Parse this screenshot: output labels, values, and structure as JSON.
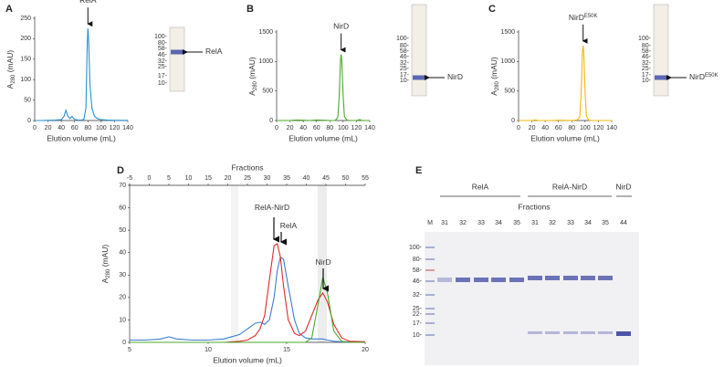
{
  "chart_data": [
    {
      "type": "line",
      "panel": "A",
      "xlabel": "Elution volume (mL)",
      "ylabel": {
        "main": "A",
        "sub": "280",
        "rest": " (mAU)"
      },
      "xlim": [
        0,
        140
      ],
      "xticks": [
        0,
        20,
        40,
        60,
        80,
        100,
        120,
        140
      ],
      "ylim": [
        0,
        250
      ],
      "yticks": [
        0,
        50,
        100,
        150,
        200,
        250
      ],
      "annotation": {
        "main": "RelA"
      },
      "inset_markers": [
        "100-",
        "80-",
        "58-",
        "46-",
        "32-",
        "25-",
        "17-",
        "10-"
      ],
      "inset_label": {
        "main": "RelA"
      },
      "x": [
        0,
        10,
        20,
        30,
        40,
        44,
        47,
        50,
        53,
        56,
        59,
        62,
        66,
        70,
        74,
        77,
        79,
        80,
        81,
        83,
        86,
        90,
        95,
        100,
        110,
        120,
        130,
        140
      ],
      "series": [
        {
          "color": "#2a8fd6",
          "values": [
            0,
            0,
            0.5,
            1,
            2,
            10,
            25,
            10,
            5,
            10,
            4,
            2,
            1,
            1,
            3,
            30,
            190,
            225,
            200,
            90,
            30,
            10,
            4,
            2,
            1,
            0.5,
            0.5,
            0.5
          ]
        }
      ]
    },
    {
      "type": "line",
      "panel": "B",
      "xlabel": "Elution volume (mL)",
      "ylabel": {
        "main": "A",
        "sub": "280",
        "rest": " (mAU)"
      },
      "xlim": [
        0,
        140
      ],
      "xticks": [
        0,
        20,
        40,
        60,
        80,
        100,
        120,
        140
      ],
      "ylim": [
        0,
        1500
      ],
      "yticks": [
        0,
        500,
        1000,
        1500
      ],
      "annotation": {
        "main": "NirD"
      },
      "inset_markers": [
        "100-",
        "80-",
        "58-",
        "46-",
        "32-",
        "25-",
        "17-",
        "10-"
      ],
      "inset_label": {
        "main": "NirD"
      },
      "x": [
        0,
        20,
        30,
        50,
        60,
        80,
        88,
        92,
        94,
        96,
        97,
        98,
        100,
        102,
        106,
        110,
        120,
        125,
        128,
        140
      ],
      "series": [
        {
          "color": "#4aa92a",
          "values": [
            0,
            0,
            10,
            0,
            10,
            0,
            2,
            50,
            400,
            1000,
            1120,
            1000,
            400,
            60,
            5,
            0,
            0,
            15,
            0,
            0
          ]
        }
      ]
    },
    {
      "type": "line",
      "panel": "C",
      "xlabel": "Elution volume (mL)",
      "ylabel": {
        "main": "A",
        "sub": "280",
        "rest": " (mAU)"
      },
      "xlim": [
        0,
        140
      ],
      "xticks": [
        0,
        20,
        40,
        60,
        80,
        100,
        120,
        140
      ],
      "ylim": [
        0,
        1500
      ],
      "yticks": [
        0,
        500,
        1000,
        1500
      ],
      "annotation": {
        "main": "NirD",
        "sup": "E50K"
      },
      "inset_markers": [
        "100-",
        "80-",
        "58-",
        "46-",
        "32-",
        "25-",
        "17-",
        "10-"
      ],
      "inset_label": {
        "main": "NirD",
        "sup": "E50K"
      },
      "x": [
        0,
        20,
        25,
        30,
        50,
        60,
        80,
        88,
        92,
        94,
        96,
        97,
        98,
        100,
        102,
        106,
        110,
        120,
        140
      ],
      "series": [
        {
          "color": "#f2b807",
          "values": [
            0,
            0,
            10,
            0,
            0,
            5,
            0,
            10,
            60,
            450,
            1150,
            1270,
            1150,
            450,
            70,
            5,
            0,
            0,
            0
          ]
        }
      ]
    },
    {
      "type": "line",
      "panel": "D",
      "xlabel": "Elution volume (mL)",
      "x2label": "Fractions",
      "ylabel": {
        "main": "A",
        "sub": "280",
        "rest": " (mAU)"
      },
      "xlim": [
        5,
        20
      ],
      "xticks": [
        5,
        10,
        15,
        20
      ],
      "x2lim": [
        -5,
        55
      ],
      "x2ticks": [
        -5,
        0,
        5,
        10,
        15,
        20,
        25,
        30,
        35,
        40,
        45,
        50,
        55
      ],
      "ylim": [
        0,
        70
      ],
      "yticks": [
        0,
        10,
        20,
        30,
        40,
        50,
        60,
        70
      ],
      "annotations": [
        {
          "main": "RelA-NirD"
        },
        {
          "main": "RelA"
        },
        {
          "main": "NirD"
        }
      ],
      "x": [
        5,
        6,
        7,
        7.5,
        8,
        9,
        10,
        11,
        12,
        12.5,
        13,
        13.3,
        13.6,
        13.9,
        14.2,
        14.4,
        14.6,
        14.8,
        15.1,
        15.5,
        15.8,
        16.2,
        16.6,
        17,
        17.3,
        17.6,
        18,
        18.5,
        19,
        20
      ],
      "series": [
        {
          "color": "#3a7fd0",
          "values": [
            1,
            1,
            1.5,
            2.5,
            1.5,
            1,
            1,
            1.5,
            3.5,
            6,
            8.5,
            9,
            8,
            10,
            20,
            32,
            38,
            37,
            25,
            10,
            4,
            2,
            1.5,
            1.5,
            1.5,
            1,
            0.5,
            0.3,
            0.2,
            0.2
          ]
        },
        {
          "color": "#e02a2a",
          "values": [
            0,
            0,
            0,
            0,
            0,
            0,
            0,
            0,
            0.5,
            1,
            3,
            6,
            12,
            28,
            43,
            44,
            38,
            25,
            10,
            4,
            3,
            5,
            12,
            19,
            22,
            18,
            8,
            2,
            0.5,
            0.3
          ]
        },
        {
          "color": "#4aa92a",
          "values": [
            0,
            0,
            0,
            0,
            0,
            0,
            0,
            0,
            0,
            0,
            0,
            0,
            0,
            0,
            0,
            0,
            0,
            0,
            0,
            0,
            0,
            0,
            2,
            17,
            29,
            22,
            5,
            0.5,
            0,
            0
          ]
        }
      ]
    }
  ],
  "gel": {
    "panel": "E",
    "groups": [
      "RelA",
      "RelA-NirD",
      "NirD"
    ],
    "subtitle": "Fractions",
    "lanes": [
      "M",
      "31",
      "32",
      "33",
      "34",
      "35",
      "31",
      "32",
      "33",
      "34",
      "35",
      "44"
    ],
    "markers": [
      "100-",
      "80-",
      "58-",
      "46-",
      "32-",
      "25-",
      "22-",
      "17-",
      "10-"
    ]
  }
}
